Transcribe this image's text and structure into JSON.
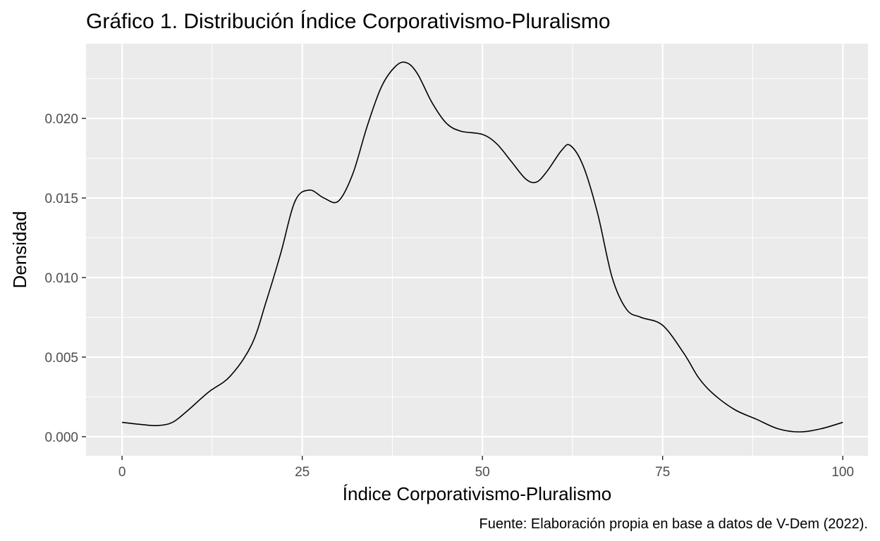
{
  "chart_data": {
    "type": "line",
    "title": "Gráfico 1. Distribución Índice Corporativismo-Pluralismo",
    "xlabel": "Índice Corporativismo-Pluralismo",
    "ylabel": "Densidad",
    "caption": "Fuente: Elaboración propia en base a datos de V-Dem (2022).",
    "xlim": [
      -5,
      103.5
    ],
    "ylim": [
      -0.0012,
      0.0247
    ],
    "x_ticks": [
      0,
      25,
      50,
      75,
      100
    ],
    "x_tick_labels": [
      "0",
      "25",
      "50",
      "75",
      "100"
    ],
    "y_ticks": [
      0.0,
      0.005,
      0.01,
      0.015,
      0.02
    ],
    "y_tick_labels": [
      "0.000",
      "0.005",
      "0.010",
      "0.015",
      "0.020"
    ],
    "grid": true,
    "panel_background": "#ebebeb",
    "grid_color": "#ffffff",
    "line_color": "#000000",
    "series": [
      {
        "x": [
          0,
          3,
          5,
          7,
          9,
          12,
          15,
          18,
          20,
          22,
          24,
          26,
          28,
          30,
          32,
          34,
          36,
          38,
          39.5,
          41,
          43,
          45,
          47,
          50,
          52,
          54,
          56,
          57.5,
          59,
          61,
          62.2,
          64,
          66,
          68,
          70,
          72,
          75,
          78,
          80,
          82,
          85,
          88,
          91,
          94,
          97,
          100
        ],
        "y": [
          0.0009,
          0.00075,
          0.0007,
          0.0009,
          0.0016,
          0.0028,
          0.0038,
          0.0058,
          0.0085,
          0.0115,
          0.0148,
          0.0155,
          0.015,
          0.0148,
          0.0165,
          0.0195,
          0.022,
          0.0233,
          0.0235,
          0.0228,
          0.021,
          0.0197,
          0.0192,
          0.019,
          0.0184,
          0.0173,
          0.0162,
          0.016,
          0.0167,
          0.018,
          0.0183,
          0.017,
          0.014,
          0.01,
          0.008,
          0.0075,
          0.007,
          0.0052,
          0.0037,
          0.0027,
          0.0017,
          0.0011,
          0.0005,
          0.0003,
          0.0005,
          0.0009
        ]
      }
    ]
  }
}
